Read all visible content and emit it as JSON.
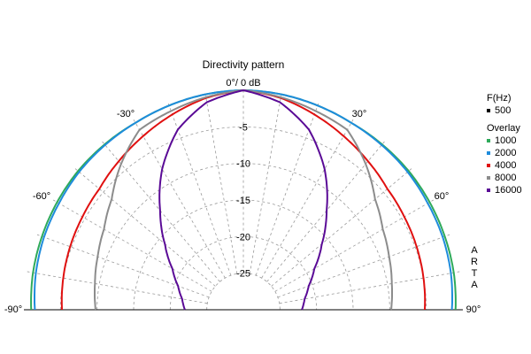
{
  "chart_data": {
    "type": "polar-line",
    "title": "Directivity pattern",
    "angle_unit": "degrees",
    "angle_range": [
      -90,
      90
    ],
    "angle_tick_labels": [
      "-90°",
      "-60°",
      "-30°",
      "0°/ 0 dB",
      "30°",
      "60°",
      "90°"
    ],
    "radial_unit": "dB",
    "radial_range": [
      -30,
      0
    ],
    "radial_tick_labels": [
      "-5",
      "-10",
      "-15",
      "-20",
      "-25"
    ],
    "grid": true,
    "legend_position": "right",
    "legend": {
      "header": "F(Hz)",
      "reference": {
        "name": "500",
        "color": "#000000"
      },
      "overlay_label": "Overlay",
      "overlay": [
        {
          "name": "1000",
          "color": "#2eaa5a"
        },
        {
          "name": "2000",
          "color": "#1e8cdc"
        },
        {
          "name": "4000",
          "color": "#e01010"
        },
        {
          "name": "8000",
          "color": "#8c8c8c"
        },
        {
          "name": "16000",
          "color": "#5a0a96"
        }
      ]
    },
    "angles": [
      0,
      10,
      20,
      30,
      40,
      50,
      60,
      70,
      80,
      90
    ],
    "series": [
      {
        "name": "1000",
        "color": "#2eaa5a",
        "values": [
          0,
          -0.1,
          -0.3,
          -0.5,
          -0.5,
          -0.5,
          -0.6,
          -0.7,
          -0.8,
          -1.0
        ]
      },
      {
        "name": "2000",
        "color": "#1e8cdc",
        "values": [
          0,
          -0.1,
          -0.3,
          -0.5,
          -0.6,
          -0.7,
          -0.9,
          -1.0,
          -1.2,
          -1.5
        ]
      },
      {
        "name": "4000",
        "color": "#e01010",
        "values": [
          0,
          -0.6,
          -1.6,
          -2.6,
          -3.5,
          -4.3,
          -4.6,
          -4.8,
          -5.0,
          -5.2
        ]
      },
      {
        "name": "8000",
        "color": "#8c8c8c",
        "values": [
          0,
          -0.5,
          -1.1,
          -1.6,
          -4.0,
          -6.5,
          -8.0,
          -8.8,
          -9.4,
          -9.8
        ]
      },
      {
        "name": "16000",
        "color": "#5a0a96",
        "values": [
          0,
          -1.2,
          -3.8,
          -7.8,
          -12.3,
          -16.0,
          -18.8,
          -20.5,
          -21.5,
          -22.0
        ]
      }
    ],
    "side_text": [
      "A",
      "R",
      "T",
      "A"
    ]
  }
}
